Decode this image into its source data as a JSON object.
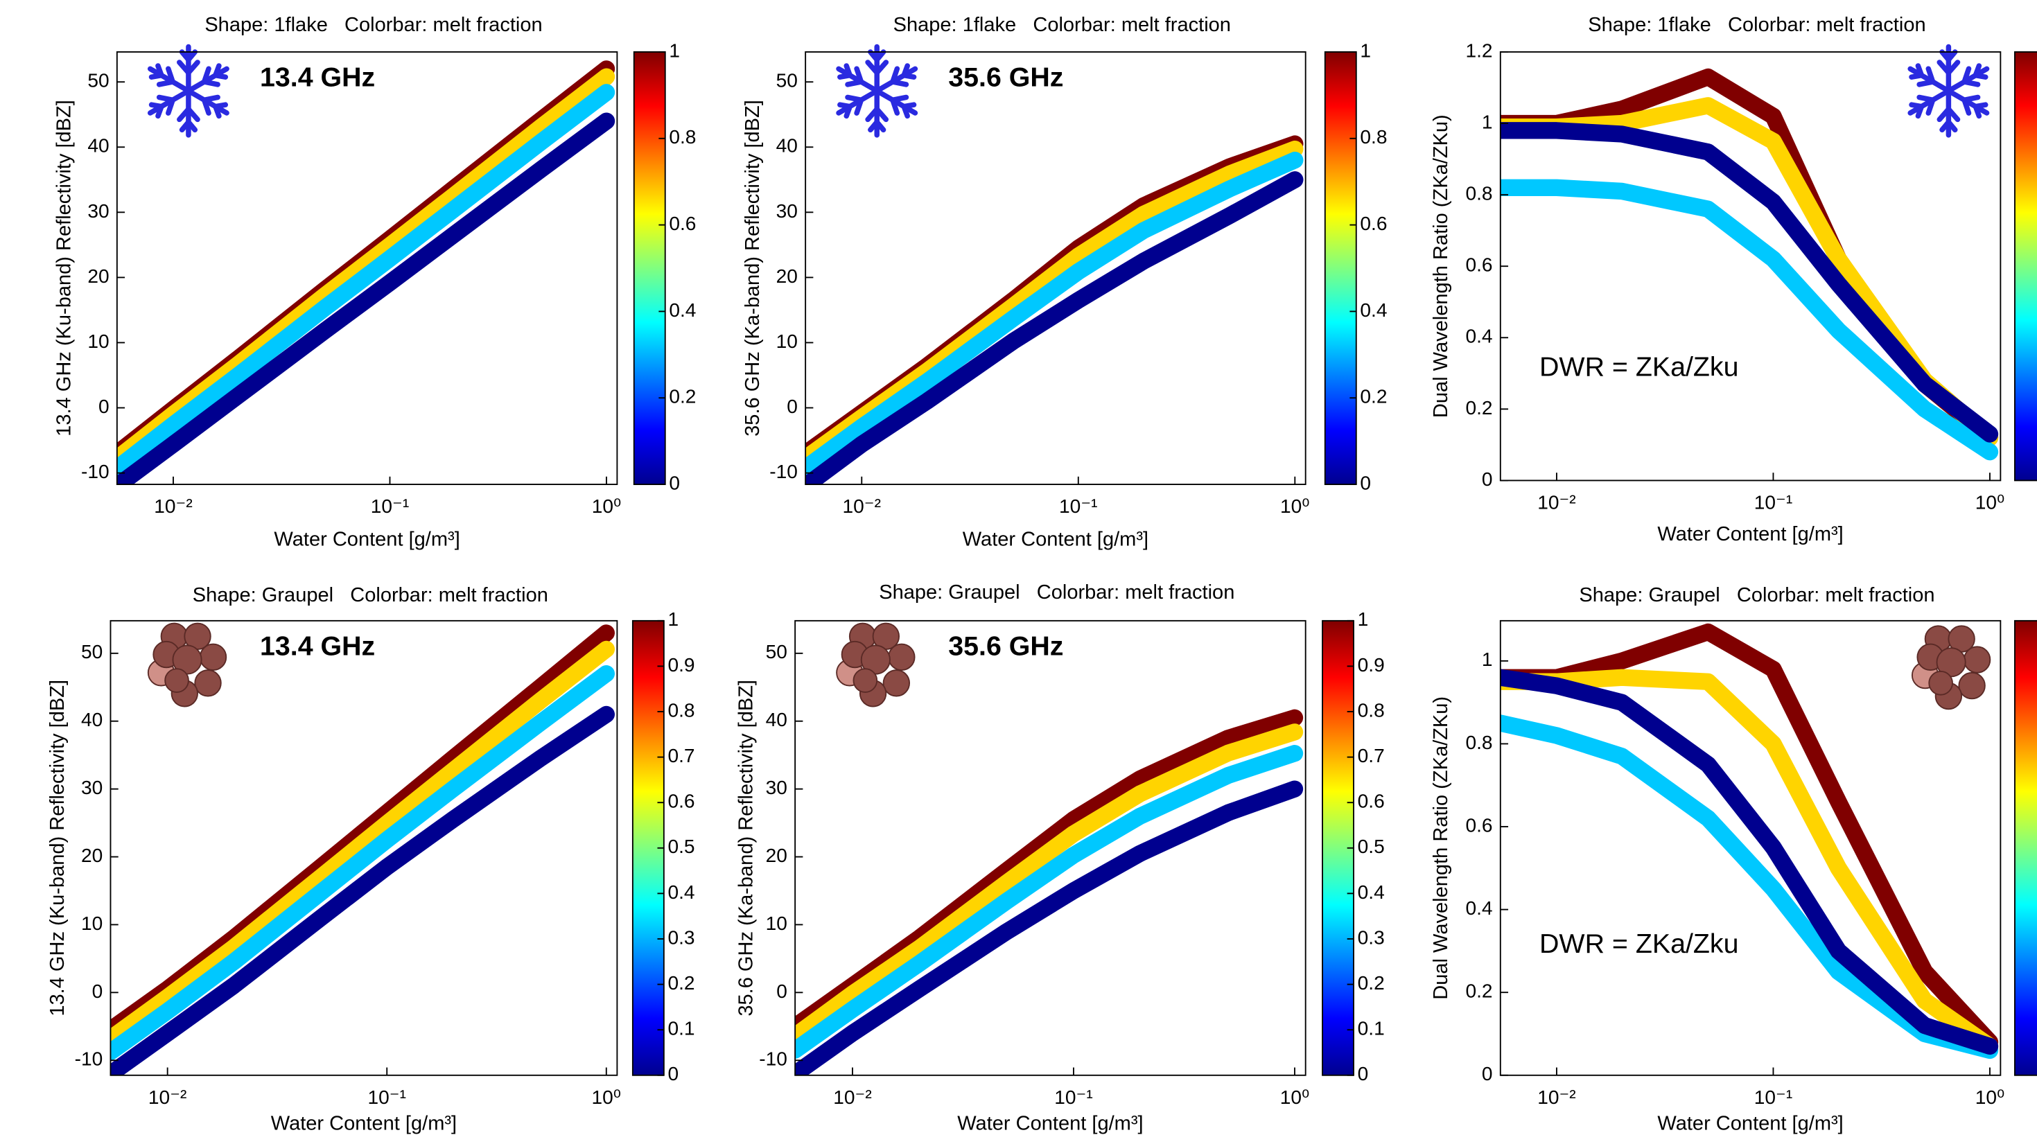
{
  "chart_data": [
    {
      "type": "line",
      "title": "Shape: 1flake   Colorbar: melt fraction",
      "annotation": "13.4 GHz",
      "xlabel": "Water Content [g/m³]",
      "ylabel": "13.4 GHz (Ku-band) Reflectivity [dBZ]",
      "x": [
        0.0055,
        0.01,
        0.02,
        0.05,
        0.1,
        0.2,
        0.5,
        1
      ],
      "xlog": true,
      "xlim": [
        0.0055,
        1.12
      ],
      "xticks": [
        {
          "value": 0.01,
          "label": "10⁻²"
        },
        {
          "value": 0.1,
          "label": "10⁻¹"
        },
        {
          "value": 1,
          "label": "10⁰"
        }
      ],
      "ylim": [
        -11.75,
        54.6
      ],
      "yticks": [
        -10,
        0,
        10,
        20,
        30,
        40,
        50
      ],
      "clim": [
        0,
        1
      ],
      "cticks": [
        0,
        0.2,
        0.4,
        0.6,
        0.8,
        1
      ],
      "series": [
        {
          "color": "#800000",
          "values": [
            -7,
            -0.2,
            7.6,
            18.1,
            25.9,
            33.8,
            44.2,
            52
          ]
        },
        {
          "color": "#ffd400",
          "values": [
            -7.8,
            -1,
            6.7,
            17.2,
            24.9,
            32.7,
            43.1,
            50.8
          ]
        },
        {
          "color": "#00c8ff",
          "values": [
            -9.3,
            -2.6,
            5,
            15.3,
            22.9,
            30.6,
            40.8,
            48.4
          ]
        },
        {
          "color": "#00008f",
          "values": [
            -12,
            -5.6,
            1.9,
            11.8,
            19.2,
            26.7,
            36.6,
            44
          ]
        }
      ]
    },
    {
      "type": "line",
      "title": "Shape: 1flake   Colorbar: melt fraction",
      "annotation": "35.6 GHz",
      "xlabel": "Water Content [g/m³]",
      "ylabel": "35.6 GHz (Ka-band) Reflectivity [dBZ]",
      "x": [
        0.0055,
        0.01,
        0.02,
        0.05,
        0.1,
        0.2,
        0.5,
        1
      ],
      "xlog": true,
      "xlim": [
        0.0055,
        1.12
      ],
      "xticks": [
        {
          "value": 0.01,
          "label": "10⁻²"
        },
        {
          "value": 0.1,
          "label": "10⁻¹"
        },
        {
          "value": 1,
          "label": "10⁰"
        }
      ],
      "ylim": [
        -11.75,
        54.6
      ],
      "yticks": [
        -10,
        0,
        10,
        20,
        30,
        40,
        50
      ],
      "clim": [
        0,
        1
      ],
      "cticks": [
        0,
        0.2,
        0.4,
        0.6,
        0.8,
        1
      ],
      "series": [
        {
          "color": "#800000",
          "values": [
            -7,
            -0.8,
            6.4,
            16.5,
            24.5,
            31,
            37,
            40.5
          ]
        },
        {
          "color": "#ffd400",
          "values": [
            -7.75,
            -1.5,
            5.6,
            15.6,
            23.3,
            29.7,
            35.9,
            39.7
          ]
        },
        {
          "color": "#00c8ff",
          "values": [
            -9.25,
            -2.96,
            4,
            13.7,
            20.9,
            27.2,
            33.6,
            38
          ]
        },
        {
          "color": "#00008f",
          "values": [
            -12,
            -5.6,
            1,
            10.2,
            16.5,
            22.5,
            29.5,
            35
          ]
        }
      ]
    },
    {
      "type": "line",
      "title": "Shape: 1flake   Colorbar: melt fraction",
      "annotation": "DWR = ZKa/Zku",
      "xlabel": "Water Content [g/m³]",
      "ylabel": "Dual Wavelength Ratio (ZKa/ZKu)",
      "x": [
        0.0055,
        0.01,
        0.02,
        0.05,
        0.1,
        0.2,
        0.5,
        1
      ],
      "xlog": true,
      "xlim": [
        0.0055,
        1.12
      ],
      "xticks": [
        {
          "value": 0.01,
          "label": "10⁻²"
        },
        {
          "value": 0.1,
          "label": "10⁻¹"
        },
        {
          "value": 1,
          "label": "10⁰"
        }
      ],
      "ylim": [
        0,
        1.2
      ],
      "yticks": [
        0,
        0.2,
        0.4,
        0.6,
        0.8,
        1,
        1.2
      ],
      "series": [
        {
          "color": "#800000",
          "values": [
            1,
            1,
            1.04,
            1.13,
            1.02,
            0.62,
            0.27,
            0.12
          ]
        },
        {
          "color": "#ffd400",
          "values": [
            0.99,
            0.99,
            1,
            1.05,
            0.95,
            0.62,
            0.28,
            0.12
          ]
        },
        {
          "color": "#00c8ff",
          "values": [
            0.82,
            0.82,
            0.81,
            0.76,
            0.62,
            0.42,
            0.2,
            0.08
          ]
        },
        {
          "color": "#00008f",
          "values": [
            0.98,
            0.98,
            0.97,
            0.92,
            0.78,
            0.55,
            0.27,
            0.13
          ]
        }
      ]
    },
    {
      "type": "line",
      "title": "Shape: Graupel   Colorbar: melt fraction",
      "annotation": "13.4 GHz",
      "xlabel": "Water Content [g/m³]",
      "ylabel": "13.4 GHz (Ku-band) Reflectivity [dBZ]",
      "x": [
        0.0055,
        0.01,
        0.02,
        0.05,
        0.1,
        0.2,
        0.5,
        1
      ],
      "xlog": true,
      "xlim": [
        0.0055,
        1.12
      ],
      "xticks": [
        {
          "value": 0.01,
          "label": "10⁻²"
        },
        {
          "value": 0.1,
          "label": "10⁻¹"
        },
        {
          "value": 1,
          "label": "10⁰"
        }
      ],
      "ylim": [
        -12.2,
        54.8
      ],
      "yticks": [
        -10,
        0,
        10,
        20,
        30,
        40,
        50
      ],
      "clim": [
        0,
        1
      ],
      "cticks": [
        0,
        0.1,
        0.2,
        0.3,
        0.4,
        0.5,
        0.6,
        0.7,
        0.8,
        0.9,
        1
      ],
      "series": [
        {
          "color": "#800000",
          "values": [
            -5.5,
            0.5,
            8,
            18.5,
            26.5,
            34.5,
            45,
            53
          ]
        },
        {
          "color": "#ffd400",
          "values": [
            -6.8,
            -0.7,
            6.6,
            17,
            24.9,
            32.7,
            43,
            50.6
          ]
        },
        {
          "color": "#00c8ff",
          "values": [
            -8.75,
            -2.75,
            4.5,
            14.75,
            22.5,
            30,
            39.75,
            47
          ]
        },
        {
          "color": "#00008f",
          "values": [
            -12,
            -6,
            1,
            11,
            18.5,
            25.5,
            34.5,
            41
          ]
        }
      ]
    },
    {
      "type": "line",
      "title": "Shape: Graupel   Colorbar: melt fraction",
      "annotation": "35.6 GHz",
      "xlabel": "Water Content [g/m³]",
      "ylabel": "35.6 GHz (Ka-band) Reflectivity [dBZ]",
      "x": [
        0.0055,
        0.01,
        0.02,
        0.05,
        0.1,
        0.2,
        0.5,
        1
      ],
      "xlog": true,
      "xlim": [
        0.0055,
        1.12
      ],
      "xticks": [
        {
          "value": 0.01,
          "label": "10⁻²"
        },
        {
          "value": 0.1,
          "label": "10⁻¹"
        },
        {
          "value": 1,
          "label": "10⁰"
        }
      ],
      "ylim": [
        -12.2,
        54.8
      ],
      "yticks": [
        -10,
        0,
        10,
        20,
        30,
        40,
        50
      ],
      "clim": [
        0,
        1
      ],
      "cticks": [
        0,
        0.1,
        0.2,
        0.3,
        0.4,
        0.5,
        0.6,
        0.7,
        0.8,
        0.9,
        1
      ],
      "series": [
        {
          "color": "#800000",
          "values": [
            -5,
            1,
            8,
            18,
            25.5,
            31.5,
            37.5,
            40.5
          ]
        },
        {
          "color": "#ffd400",
          "values": [
            -6.4,
            -0.2,
            6.5,
            16.2,
            23.4,
            29.3,
            35.3,
            38.4
          ]
        },
        {
          "color": "#00c8ff",
          "values": [
            -8.5,
            -2.5,
            4.25,
            13.5,
            20.25,
            26,
            32,
            35.25
          ]
        },
        {
          "color": "#00008f",
          "values": [
            -12,
            -6,
            0.5,
            9,
            15,
            20.5,
            26.5,
            30
          ]
        }
      ]
    },
    {
      "type": "line",
      "title": "Shape: Graupel   Colorbar: melt fraction",
      "annotation": "DWR = ZKa/Zku",
      "xlabel": "Water Content [g/m³]",
      "ylabel": "Dual Wavelength Ratio (ZKa/ZKu)",
      "x": [
        0.0055,
        0.01,
        0.02,
        0.05,
        0.1,
        0.2,
        0.5,
        1
      ],
      "xlog": true,
      "xlim": [
        0.0055,
        1.12
      ],
      "xticks": [
        {
          "value": 0.01,
          "label": "10⁻²"
        },
        {
          "value": 0.1,
          "label": "10⁻¹"
        },
        {
          "value": 1,
          "label": "10⁰"
        }
      ],
      "ylim": [
        0,
        1.097
      ],
      "yticks": [
        0,
        0.2,
        0.4,
        0.6,
        0.8,
        1
      ],
      "series": [
        {
          "color": "#800000",
          "values": [
            0.96,
            0.96,
            1,
            1.07,
            0.98,
            0.66,
            0.25,
            0.08
          ]
        },
        {
          "color": "#ffd400",
          "values": [
            0.95,
            0.95,
            0.96,
            0.95,
            0.8,
            0.5,
            0.18,
            0.07
          ]
        },
        {
          "color": "#00c8ff",
          "values": [
            0.85,
            0.82,
            0.77,
            0.62,
            0.45,
            0.25,
            0.1,
            0.06
          ]
        },
        {
          "color": "#00008f",
          "values": [
            0.96,
            0.94,
            0.9,
            0.75,
            0.55,
            0.3,
            0.12,
            0.07
          ]
        }
      ]
    }
  ]
}
